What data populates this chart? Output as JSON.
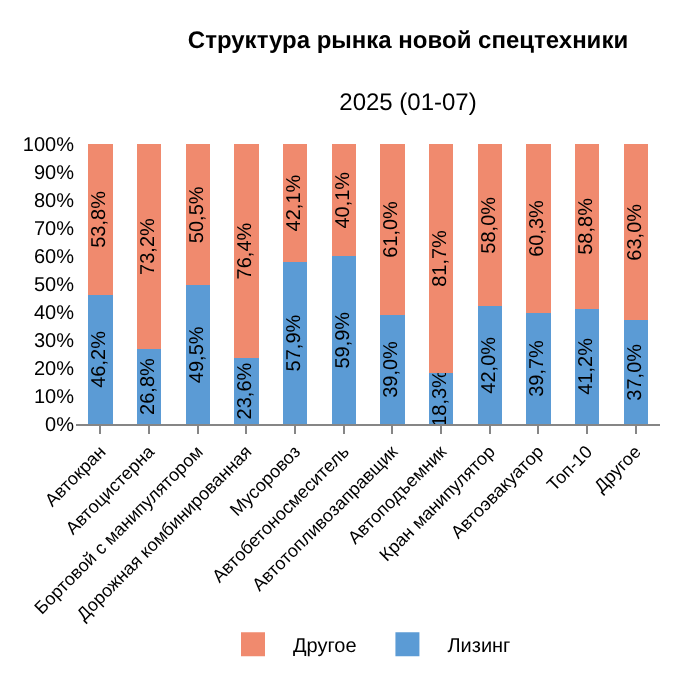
{
  "chart_data": {
    "type": "bar",
    "title": "Структура рынка новой спецтехники",
    "subtitle": "2025 (01-07)",
    "stacked": true,
    "legend": "bottom",
    "grid": false,
    "categories": [
      "Автокран",
      "Автоцистерна",
      "Бортовой с манипулятором",
      "Дорожная комбинированная",
      "Мусоровоз",
      "Автобетоносмеситель",
      "Автотопливозаправщик",
      "Автоподъемник",
      "Кран манипулятор",
      "Автоэвакуатор",
      "Топ-10",
      "Другое"
    ],
    "ylim": [
      0,
      100
    ],
    "yticks": [
      {
        "value": 0,
        "label": "0%"
      },
      {
        "value": 10,
        "label": "10%"
      },
      {
        "value": 20,
        "label": "20%"
      },
      {
        "value": 30,
        "label": "30%"
      },
      {
        "value": 40,
        "label": "40%"
      },
      {
        "value": 50,
        "label": "50%"
      },
      {
        "value": 60,
        "label": "60%"
      },
      {
        "value": 70,
        "label": "70%"
      },
      {
        "value": 80,
        "label": "80%"
      },
      {
        "value": 90,
        "label": "90%"
      },
      {
        "value": 100,
        "label": "100%"
      }
    ],
    "series": [
      {
        "name": "Лизинг",
        "color": "#5b9bd5",
        "values": [
          46.2,
          26.8,
          49.5,
          23.6,
          57.9,
          59.9,
          39.0,
          18.3,
          42.0,
          39.7,
          41.2,
          37.0
        ],
        "value_labels": [
          "46,2%",
          "26,8%",
          "49,5%",
          "23,6%",
          "57,9%",
          "59,9%",
          "39,0%",
          "18,3%",
          "42,0%",
          "39,7%",
          "41,2%",
          "37,0%"
        ]
      },
      {
        "name": "Другое",
        "color": "#f08a6e",
        "values": [
          53.8,
          73.2,
          50.5,
          76.4,
          42.1,
          40.1,
          61.0,
          81.7,
          58.0,
          60.3,
          58.8,
          63.0
        ],
        "value_labels": [
          "53,8%",
          "73,2%",
          "50,5%",
          "76,4%",
          "42,1%",
          "40,1%",
          "61,0%",
          "81,7%",
          "58,0%",
          "60,3%",
          "58,8%",
          "63,0%"
        ]
      }
    ]
  }
}
